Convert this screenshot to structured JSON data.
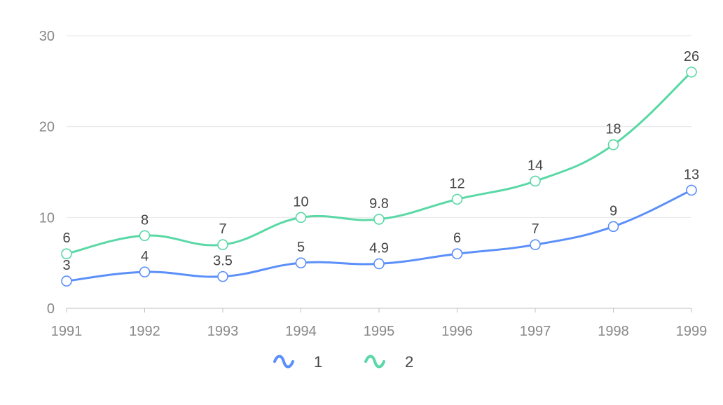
{
  "chart_data": {
    "type": "line",
    "smooth": true,
    "x": [
      "1991",
      "1992",
      "1993",
      "1994",
      "1995",
      "1996",
      "1997",
      "1998",
      "1999"
    ],
    "series": [
      {
        "name": "1",
        "color": "#5b8ff9",
        "values": [
          3,
          4,
          3.5,
          5,
          4.9,
          6,
          7,
          9,
          13
        ]
      },
      {
        "name": "2",
        "color": "#5ad8a6",
        "values": [
          6,
          8,
          7,
          10,
          9.8,
          12,
          14,
          18,
          26
        ]
      }
    ],
    "y_ticks": [
      "0",
      "10",
      "20",
      "30"
    ],
    "ylim": [
      0,
      30
    ],
    "grid": true,
    "data_labels": true,
    "legend_position": "bottom-center"
  }
}
